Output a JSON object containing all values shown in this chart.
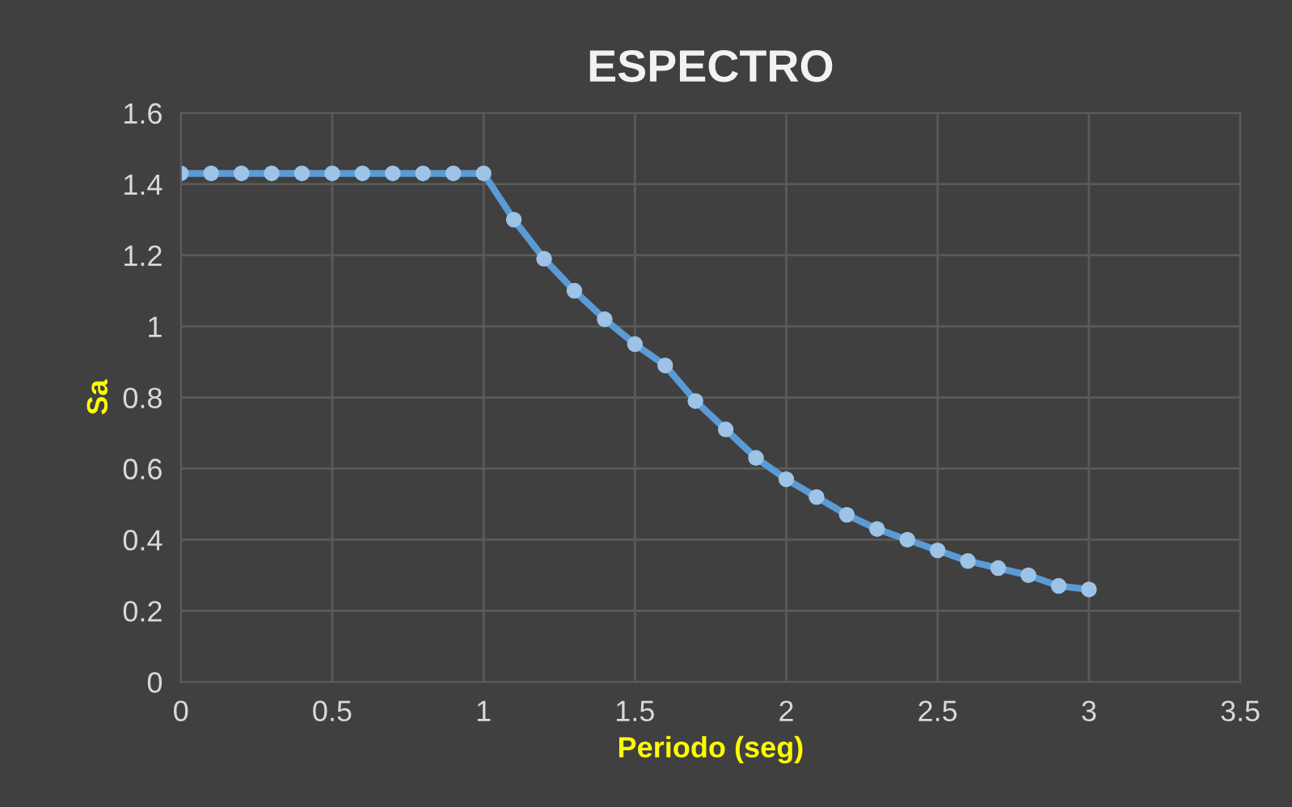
{
  "chart_data": {
    "type": "line",
    "title": "ESPECTRO",
    "xlabel": "Periodo (seg)",
    "ylabel": "Sa",
    "x": [
      0,
      0.1,
      0.2,
      0.3,
      0.4,
      0.5,
      0.6,
      0.7,
      0.8,
      0.9,
      1,
      1.1,
      1.2,
      1.3,
      1.4,
      1.5,
      1.6,
      1.7,
      1.8,
      1.9,
      2,
      2.1,
      2.2,
      2.3,
      2.4,
      2.5,
      2.6,
      2.7,
      2.8,
      2.9,
      3
    ],
    "series": [
      {
        "color": "#5b9bd5",
        "values": [
          1.43,
          1.43,
          1.43,
          1.43,
          1.43,
          1.43,
          1.43,
          1.43,
          1.43,
          1.43,
          1.43,
          1.3,
          1.19,
          1.1,
          1.02,
          0.95,
          0.89,
          0.79,
          0.71,
          0.63,
          0.57,
          0.52,
          0.47,
          0.43,
          0.4,
          0.37,
          0.34,
          0.32,
          0.3,
          0.27,
          0.26
        ]
      }
    ],
    "xlim": [
      0,
      3.5
    ],
    "xticks": [
      0,
      0.5,
      1,
      1.5,
      2,
      2.5,
      3,
      3.5
    ],
    "ylim": [
      0,
      1.6
    ],
    "yticks": [
      0,
      0.2,
      0.4,
      0.6,
      0.8,
      1,
      1.2,
      1.4,
      1.6
    ],
    "grid": true,
    "marker": "circle",
    "line_style": "solid",
    "legend": false
  }
}
